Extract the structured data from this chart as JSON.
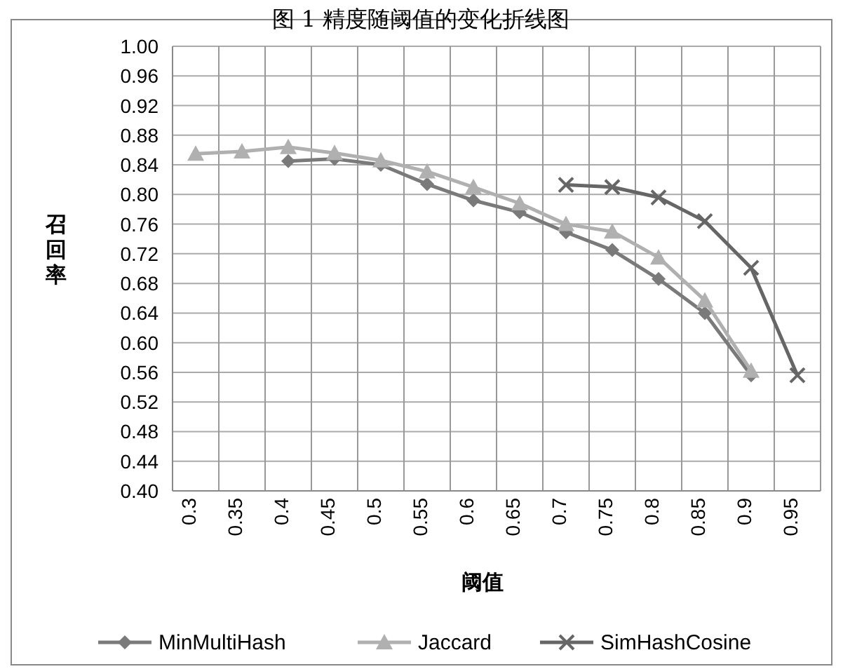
{
  "chart_data": {
    "type": "line",
    "title": "图 1  精度随阈值的变化折线图",
    "xlabel": "阈值",
    "ylabel": "召回率",
    "categories": [
      "0.3",
      "0.35",
      "0.4",
      "0.45",
      "0.5",
      "0.55",
      "0.6",
      "0.65",
      "0.7",
      "0.75",
      "0.8",
      "0.85",
      "0.9",
      "0.95"
    ],
    "series": [
      {
        "name": "MinMultiHash",
        "color": "#7a7a7a",
        "marker": "diamond",
        "values": [
          null,
          null,
          0.845,
          0.848,
          0.84,
          0.814,
          0.792,
          0.776,
          0.749,
          0.725,
          0.686,
          0.64,
          0.556,
          null
        ]
      },
      {
        "name": "Jaccard",
        "color": "#b0b0b0",
        "marker": "triangle",
        "values": [
          0.855,
          0.858,
          0.864,
          0.856,
          0.846,
          0.831,
          0.81,
          0.788,
          0.76,
          0.75,
          0.715,
          0.657,
          0.562,
          null
        ]
      },
      {
        "name": "SimHashCosine",
        "color": "#666666",
        "marker": "cross",
        "values": [
          null,
          null,
          null,
          null,
          null,
          null,
          null,
          null,
          0.813,
          0.81,
          0.796,
          0.764,
          0.701,
          0.556
        ]
      }
    ],
    "ylim": [
      0.4,
      1.0
    ],
    "yticks": [
      {
        "value": 0.4,
        "label": "0.40"
      },
      {
        "value": 0.44,
        "label": "0.44"
      },
      {
        "value": 0.48,
        "label": "0.48"
      },
      {
        "value": 0.52,
        "label": "0.52"
      },
      {
        "value": 0.56,
        "label": "0.56"
      },
      {
        "value": 0.6,
        "label": "0.60"
      },
      {
        "value": 0.64,
        "label": "0.64"
      },
      {
        "value": 0.68,
        "label": "0.68"
      },
      {
        "value": 0.72,
        "label": "0.72"
      },
      {
        "value": 0.76,
        "label": "0.76"
      },
      {
        "value": 0.8,
        "label": "0.80"
      },
      {
        "value": 0.84,
        "label": "0.84"
      },
      {
        "value": 0.88,
        "label": "0.88"
      },
      {
        "value": 0.92,
        "label": "0.92"
      },
      {
        "value": 0.96,
        "label": "0.96"
      },
      {
        "value": 1.0,
        "label": "1.00"
      }
    ],
    "grid": true,
    "legend": "bottom",
    "line_style": "solid"
  }
}
